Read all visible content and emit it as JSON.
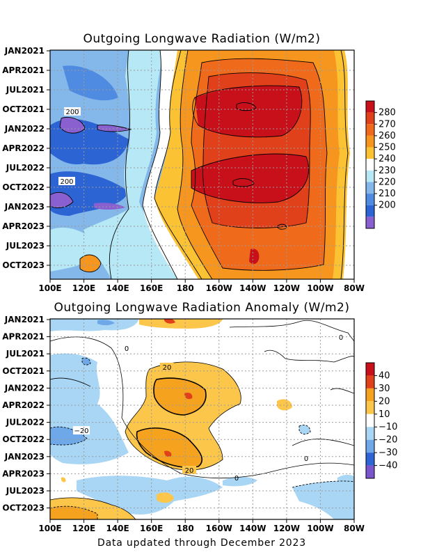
{
  "footer": "Data updated through December 2023",
  "chart_data": [
    {
      "type": "heatmap",
      "title": "Outgoing Longwave Radiation (W/m2)",
      "x_ticks": [
        "100E",
        "120E",
        "140E",
        "160E",
        "180",
        "160W",
        "140W",
        "120W",
        "100W",
        "80W"
      ],
      "y_ticks": [
        "JAN2021",
        "APR2021",
        "JUL2021",
        "OCT2021",
        "JAN2022",
        "APR2022",
        "JUL2022",
        "OCT2022",
        "JAN2023",
        "APR2023",
        "JUL2023",
        "OCT2023"
      ],
      "grid": true,
      "colorbar": {
        "labels": [
          "280",
          "270",
          "260",
          "250",
          "240",
          "230",
          "220",
          "210",
          "200"
        ],
        "colors": [
          "#c8101a",
          "#e0401a",
          "#f06a1c",
          "#f7961e",
          "#fbc333",
          "#ffffff",
          "#b7e8f5",
          "#84b7ea",
          "#4f8be0",
          "#2d64d4",
          "#8a60d0"
        ]
      },
      "contour_labels": [
        "200",
        "200"
      ]
    },
    {
      "type": "heatmap",
      "title": "Outgoing Longwave Radiation Anomaly (W/m2)",
      "x_ticks": [
        "100E",
        "120E",
        "140E",
        "160E",
        "180",
        "160W",
        "140W",
        "120W",
        "100W",
        "80W"
      ],
      "y_ticks": [
        "JAN2021",
        "APR2021",
        "JUL2021",
        "OCT2021",
        "JAN2022",
        "APR2022",
        "JUL2022",
        "OCT2022",
        "JAN2023",
        "APR2023",
        "JUL2023",
        "OCT2023"
      ],
      "grid": true,
      "colorbar": {
        "labels": [
          "40",
          "30",
          "20",
          "10",
          "−10",
          "−20",
          "−30",
          "−40"
        ],
        "colors": [
          "#c8101a",
          "#e0401a",
          "#f5a21e",
          "#fbc64a",
          "#ffffff",
          "#a9d6f5",
          "#6fa8e8",
          "#2e65d4",
          "#7b55cc"
        ]
      },
      "contour_labels": [
        "20",
        "20",
        "−20",
        "0",
        "0",
        "0",
        "0"
      ]
    }
  ]
}
